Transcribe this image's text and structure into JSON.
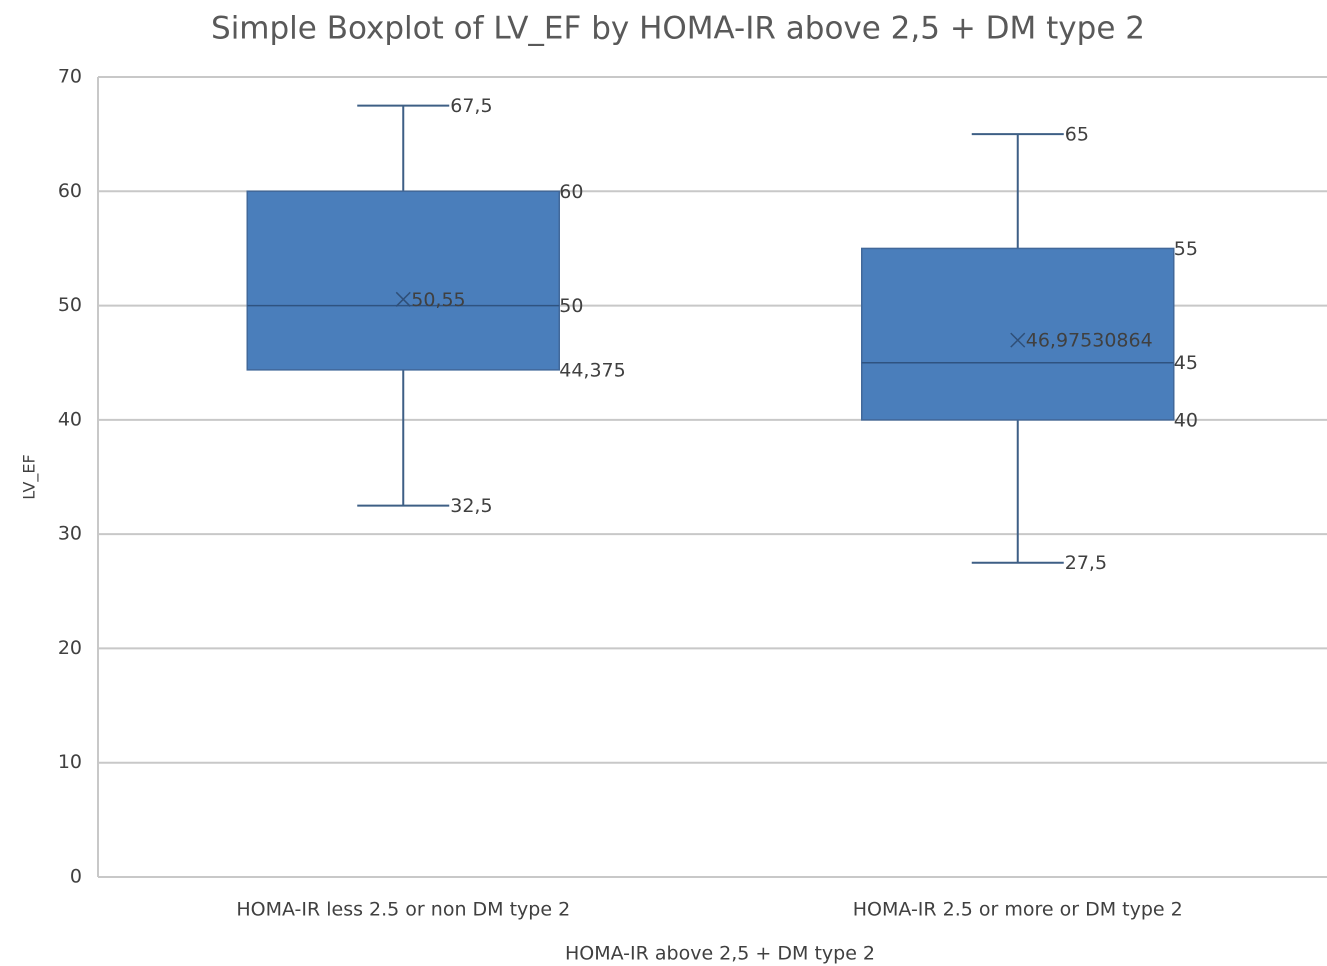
{
  "chart_data": {
    "type": "box",
    "title": "Simple Boxplot of LV_EF by HOMA-IR above 2,5 + DM type 2",
    "xlabel": "HOMA-IR above 2,5 + DM type 2",
    "ylabel": "LV_EF",
    "categories": [
      "HOMA-IR less 2.5 or non DM type 2",
      "HOMA-IR 2.5 or more or DM type 2"
    ],
    "color": "#4a7ebb",
    "ylim": [
      0,
      70
    ],
    "yticks": [
      0,
      10,
      20,
      30,
      40,
      50,
      60,
      70
    ],
    "grid": true,
    "boxes": [
      {
        "min": 32.5,
        "q1": 44.375,
        "median": 50,
        "q3": 60,
        "max": 67.5,
        "mean": 50.55,
        "value_labels": {
          "min": "32,5",
          "q1": "44,375",
          "max": "67,5",
          "mean": "50,55"
        }
      },
      {
        "min": 27.5,
        "q1": 40,
        "median": 45,
        "q3": 55,
        "max": 65,
        "mean": 46.97530864,
        "value_labels": {
          "min": "27,5",
          "max": "65",
          "mean": "46,97530864"
        }
      }
    ]
  }
}
